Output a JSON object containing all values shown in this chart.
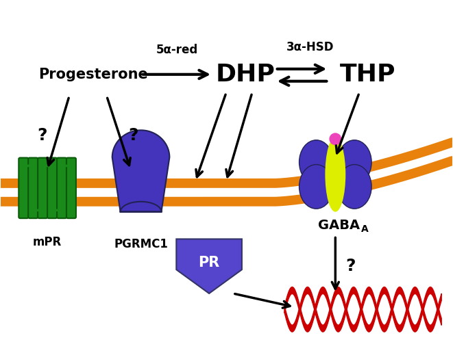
{
  "bg_color": "#ffffff",
  "membrane_color": "#E8820C",
  "progesterone_label": "Progesterone",
  "dhp_label": "DHP",
  "thp_label": "THP",
  "alpha_red_label": "5α-red",
  "hsd_label": "3α-HSD",
  "mpr_label": "mPR",
  "pgrmc1_label": "PGRMC1",
  "pr_label": "PR",
  "gaba_label": "GABA",
  "gaba_sub": "A",
  "question_mark": "?",
  "mpr_color": "#1a8a1a",
  "mpr_dark": "#0a5a0a",
  "pgrmc1_color": "#4433bb",
  "pr_color": "#5544cc",
  "gaba_blue": "#4433bb",
  "gaba_yellow": "#ddee00",
  "gaba_pink": "#ee44bb",
  "dna_color": "#cc0000"
}
